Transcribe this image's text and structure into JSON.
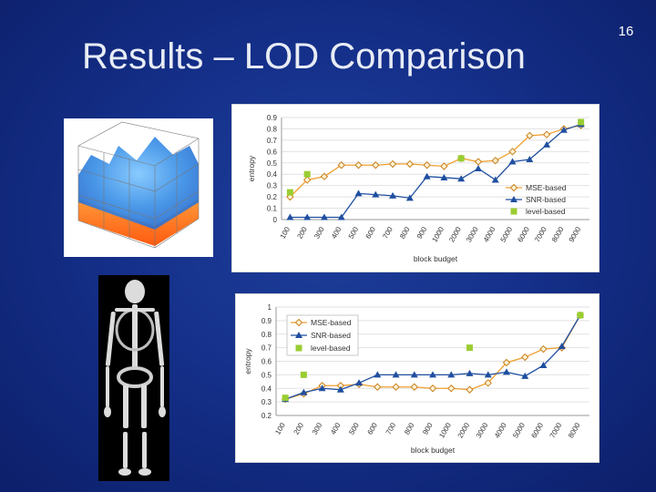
{
  "slide": {
    "title": "Results – LOD Comparison",
    "page_number": "16"
  },
  "colors": {
    "background": "#15308a",
    "mse": "#f0a030",
    "snr": "#1f4fa0",
    "level": "#9acd32"
  },
  "chart_data": [
    {
      "type": "line",
      "categories": [
        "100",
        "200",
        "300",
        "400",
        "500",
        "600",
        "700",
        "800",
        "900",
        "1000",
        "2000",
        "3000",
        "4000",
        "5000",
        "6000",
        "7000",
        "8000",
        "9000"
      ],
      "ylabel": "entropy",
      "xlabel": "block budget",
      "ylim": [
        0,
        0.9
      ],
      "yticks": [
        "0",
        "0.1",
        "0.2",
        "0.3",
        "0.4",
        "0.5",
        "0.6",
        "0.7",
        "0.8",
        "0.9"
      ],
      "legend_position": "bottom-right",
      "grid": true,
      "series": [
        {
          "name": "MSE-based",
          "marker": "diamond",
          "values": [
            0.2,
            0.35,
            0.38,
            0.48,
            0.48,
            0.48,
            0.49,
            0.49,
            0.48,
            0.47,
            0.54,
            0.51,
            0.52,
            0.6,
            0.74,
            0.75,
            0.8,
            0.83
          ]
        },
        {
          "name": "SNR-based",
          "marker": "triangle",
          "values": [
            0.02,
            0.02,
            0.02,
            0.02,
            0.23,
            0.22,
            0.21,
            0.19,
            0.38,
            0.37,
            0.36,
            0.45,
            0.35,
            0.51,
            0.53,
            0.66,
            0.79,
            0.84
          ]
        },
        {
          "name": "level-based",
          "marker": "square",
          "points": [
            [
              0,
              0.24
            ],
            [
              1,
              0.4
            ],
            [
              10,
              0.54
            ],
            [
              17,
              0.86
            ]
          ]
        }
      ]
    },
    {
      "type": "line",
      "categories": [
        "100",
        "200",
        "300",
        "400",
        "500",
        "600",
        "700",
        "800",
        "900",
        "1000",
        "2000",
        "3000",
        "4000",
        "5000",
        "6000",
        "7000",
        "8000"
      ],
      "ylabel": "entropy",
      "xlabel": "block budget",
      "ylim": [
        0.2,
        1
      ],
      "yticks": [
        "0.2",
        "0.3",
        "0.4",
        "0.5",
        "0.6",
        "0.7",
        "0.8",
        "0.9",
        "1"
      ],
      "legend_position": "top-left",
      "grid": true,
      "series": [
        {
          "name": "MSE-based",
          "marker": "diamond",
          "values": [
            0.32,
            0.36,
            0.42,
            0.42,
            0.43,
            0.41,
            0.41,
            0.41,
            0.4,
            0.4,
            0.39,
            0.44,
            0.59,
            0.63,
            0.69,
            0.7,
            0.94
          ]
        },
        {
          "name": "SNR-based",
          "marker": "triangle",
          "values": [
            0.32,
            0.37,
            0.4,
            0.39,
            0.44,
            0.5,
            0.5,
            0.5,
            0.5,
            0.5,
            0.51,
            0.5,
            0.52,
            0.49,
            0.57,
            0.71,
            0.94
          ]
        },
        {
          "name": "level-based",
          "marker": "square",
          "points": [
            [
              0,
              0.33
            ],
            [
              1,
              0.5
            ],
            [
              10,
              0.7
            ],
            [
              16,
              0.94
            ]
          ]
        }
      ]
    }
  ]
}
